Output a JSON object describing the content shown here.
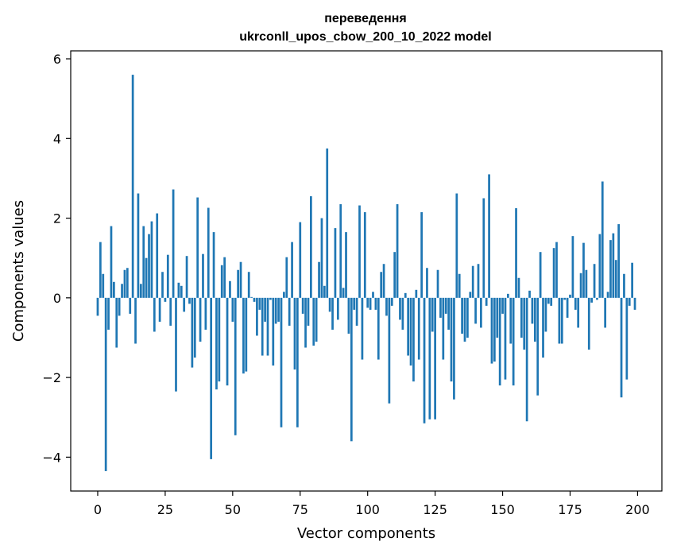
{
  "chart_data": {
    "type": "bar",
    "title_line1": "переведення",
    "title_line2": "ukrconll_upos_cbow_200_10_2022 model",
    "xlabel": "Vector components",
    "ylabel": "Components values",
    "xlim": [
      -10,
      209
    ],
    "ylim": [
      -4.85,
      6.2
    ],
    "xticks": [
      0,
      25,
      50,
      75,
      100,
      125,
      150,
      175,
      200
    ],
    "yticks": [
      -4,
      -2,
      0,
      2,
      4,
      6
    ],
    "ytick_labels": [
      "−4",
      "−2",
      "0",
      "2",
      "4",
      "6"
    ],
    "bar_color": "#1f77b4",
    "x": [
      0,
      1,
      2,
      3,
      4,
      5,
      6,
      7,
      8,
      9,
      10,
      11,
      12,
      13,
      14,
      15,
      16,
      17,
      18,
      19,
      20,
      21,
      22,
      23,
      24,
      25,
      26,
      27,
      28,
      29,
      30,
      31,
      32,
      33,
      34,
      35,
      36,
      37,
      38,
      39,
      40,
      41,
      42,
      43,
      44,
      45,
      46,
      47,
      48,
      49,
      50,
      51,
      52,
      53,
      54,
      55,
      56,
      57,
      58,
      59,
      60,
      61,
      62,
      63,
      64,
      65,
      66,
      67,
      68,
      69,
      70,
      71,
      72,
      73,
      74,
      75,
      76,
      77,
      78,
      79,
      80,
      81,
      82,
      83,
      84,
      85,
      86,
      87,
      88,
      89,
      90,
      91,
      92,
      93,
      94,
      95,
      96,
      97,
      98,
      99,
      100,
      101,
      102,
      103,
      104,
      105,
      106,
      107,
      108,
      109,
      110,
      111,
      112,
      113,
      114,
      115,
      116,
      117,
      118,
      119,
      120,
      121,
      122,
      123,
      124,
      125,
      126,
      127,
      128,
      129,
      130,
      131,
      132,
      133,
      134,
      135,
      136,
      137,
      138,
      139,
      140,
      141,
      142,
      143,
      144,
      145,
      146,
      147,
      148,
      149,
      150,
      151,
      152,
      153,
      154,
      155,
      156,
      157,
      158,
      159,
      160,
      161,
      162,
      163,
      164,
      165,
      166,
      167,
      168,
      169,
      170,
      171,
      172,
      173,
      174,
      175,
      176,
      177,
      178,
      179,
      180,
      181,
      182,
      183,
      184,
      185,
      186,
      187,
      188,
      189,
      190,
      191,
      192,
      193,
      194,
      195,
      196,
      197,
      198,
      199
    ],
    "values": [
      -0.45,
      1.4,
      0.6,
      -4.35,
      -0.8,
      1.8,
      0.4,
      -1.25,
      -0.45,
      0.35,
      0.7,
      0.75,
      -0.4,
      5.6,
      -1.15,
      2.62,
      0.35,
      1.8,
      1.0,
      1.6,
      1.92,
      -0.85,
      2.12,
      -0.6,
      0.65,
      -0.1,
      1.08,
      -0.7,
      2.72,
      -2.35,
      0.38,
      0.3,
      -0.35,
      1.05,
      -0.15,
      -1.75,
      -1.5,
      2.52,
      -1.1,
      1.1,
      -0.8,
      2.26,
      -4.05,
      1.65,
      -2.3,
      -2.1,
      0.82,
      1.02,
      -2.2,
      0.42,
      -0.6,
      -3.45,
      0.7,
      0.9,
      -1.9,
      -1.85,
      0.65,
      0.02,
      -0.1,
      -0.95,
      -0.3,
      -1.45,
      -0.6,
      -1.45,
      -0.05,
      -1.7,
      -0.65,
      -0.6,
      -3.25,
      0.15,
      1.02,
      -0.7,
      1.4,
      -1.8,
      -3.25,
      1.9,
      -0.4,
      -1.25,
      -0.7,
      2.55,
      -1.2,
      -1.1,
      0.9,
      2.0,
      0.3,
      3.75,
      -0.35,
      -0.8,
      1.75,
      -0.55,
      2.35,
      0.25,
      1.65,
      -0.9,
      -3.6,
      -0.3,
      -0.7,
      2.32,
      -1.55,
      2.15,
      -0.25,
      -0.3,
      0.15,
      -0.3,
      -1.55,
      0.65,
      0.85,
      -0.45,
      -2.65,
      -0.2,
      1.15,
      2.35,
      -0.55,
      -0.8,
      0.12,
      -1.45,
      -1.7,
      -2.1,
      0.2,
      -1.55,
      2.15,
      -3.15,
      0.75,
      -3.05,
      -0.85,
      -3.05,
      0.7,
      -0.5,
      -1.55,
      -0.4,
      -0.8,
      -2.1,
      -2.55,
      2.62,
      0.6,
      -0.9,
      -1.1,
      -1.0,
      0.15,
      0.8,
      -0.65,
      0.85,
      -0.75,
      2.5,
      -0.2,
      3.1,
      -1.65,
      -1.6,
      -1.0,
      -2.2,
      -0.4,
      -2.05,
      0.1,
      -1.15,
      -2.2,
      2.25,
      0.5,
      -1.0,
      -1.3,
      -3.1,
      0.18,
      -0.65,
      -1.1,
      -2.45,
      1.15,
      -1.5,
      -0.85,
      -0.15,
      -0.2,
      1.25,
      1.4,
      -1.15,
      -1.15,
      -0.05,
      -0.5,
      0.08,
      1.55,
      -0.3,
      -0.75,
      0.62,
      1.38,
      0.7,
      -1.3,
      -0.12,
      0.85,
      -0.05,
      1.6,
      2.92,
      -0.75,
      0.15,
      1.45,
      1.62,
      0.95,
      1.85,
      -2.5,
      0.6,
      -2.05,
      -0.2,
      0.88,
      -0.3
    ]
  }
}
